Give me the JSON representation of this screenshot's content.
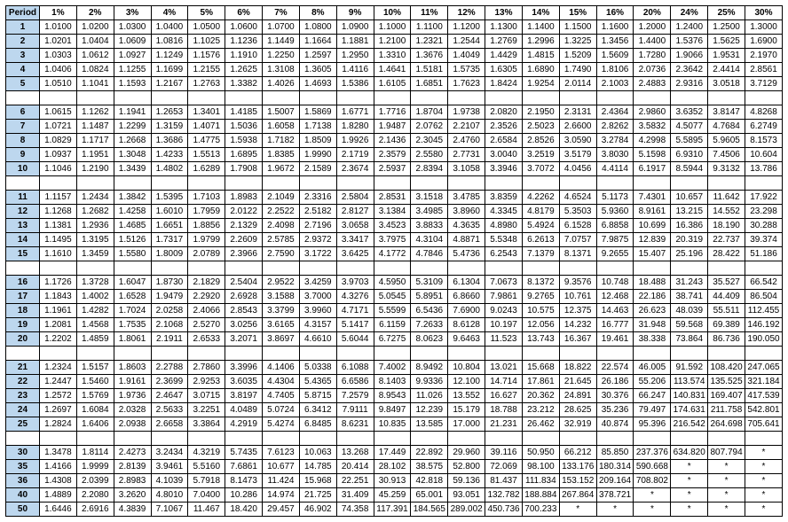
{
  "table": {
    "type": "table",
    "period_header": "Period",
    "columns": [
      "1%",
      "2%",
      "3%",
      "4%",
      "5%",
      "6%",
      "7%",
      "8%",
      "9%",
      "10%",
      "11%",
      "12%",
      "13%",
      "14%",
      "15%",
      "16%",
      "20%",
      "24%",
      "25%",
      "30%"
    ],
    "header_bg": "#bdd7ee",
    "period_cell_bg": "#bdd7ee",
    "cell_bg": "#ffffff",
    "border_color": "#000000",
    "font_size": 10,
    "groups": [
      [
        {
          "p": "1",
          "v": [
            "1.0100",
            "1.0200",
            "1.0300",
            "1.0400",
            "1.0500",
            "1.0600",
            "1.0700",
            "1.0800",
            "1.0900",
            "1.1000",
            "1.1100",
            "1.1200",
            "1.1300",
            "1.1400",
            "1.1500",
            "1.1600",
            "1.2000",
            "1.2400",
            "1.2500",
            "1.3000"
          ]
        },
        {
          "p": "2",
          "v": [
            "1.0201",
            "1.0404",
            "1.0609",
            "1.0816",
            "1.1025",
            "1.1236",
            "1.1449",
            "1.1664",
            "1.1881",
            "1.2100",
            "1.2321",
            "1.2544",
            "1.2769",
            "1.2996",
            "1.3225",
            "1.3456",
            "1.4400",
            "1.5376",
            "1.5625",
            "1.6900"
          ]
        },
        {
          "p": "3",
          "v": [
            "1.0303",
            "1.0612",
            "1.0927",
            "1.1249",
            "1.1576",
            "1.1910",
            "1.2250",
            "1.2597",
            "1.2950",
            "1.3310",
            "1.3676",
            "1.4049",
            "1.4429",
            "1.4815",
            "1.5209",
            "1.5609",
            "1.7280",
            "1.9066",
            "1.9531",
            "2.1970"
          ]
        },
        {
          "p": "4",
          "v": [
            "1.0406",
            "1.0824",
            "1.1255",
            "1.1699",
            "1.2155",
            "1.2625",
            "1.3108",
            "1.3605",
            "1.4116",
            "1.4641",
            "1.5181",
            "1.5735",
            "1.6305",
            "1.6890",
            "1.7490",
            "1.8106",
            "2.0736",
            "2.3642",
            "2.4414",
            "2.8561"
          ]
        },
        {
          "p": "5",
          "v": [
            "1.0510",
            "1.1041",
            "1.1593",
            "1.2167",
            "1.2763",
            "1.3382",
            "1.4026",
            "1.4693",
            "1.5386",
            "1.6105",
            "1.6851",
            "1.7623",
            "1.8424",
            "1.9254",
            "2.0114",
            "2.1003",
            "2.4883",
            "2.9316",
            "3.0518",
            "3.7129"
          ]
        }
      ],
      [
        {
          "p": "6",
          "v": [
            "1.0615",
            "1.1262",
            "1.1941",
            "1.2653",
            "1.3401",
            "1.4185",
            "1.5007",
            "1.5869",
            "1.6771",
            "1.7716",
            "1.8704",
            "1.9738",
            "2.0820",
            "2.1950",
            "2.3131",
            "2.4364",
            "2.9860",
            "3.6352",
            "3.8147",
            "4.8268"
          ]
        },
        {
          "p": "7",
          "v": [
            "1.0721",
            "1.1487",
            "1.2299",
            "1.3159",
            "1.4071",
            "1.5036",
            "1.6058",
            "1.7138",
            "1.8280",
            "1.9487",
            "2.0762",
            "2.2107",
            "2.3526",
            "2.5023",
            "2.6600",
            "2.8262",
            "3.5832",
            "4.5077",
            "4.7684",
            "6.2749"
          ]
        },
        {
          "p": "8",
          "v": [
            "1.0829",
            "1.1717",
            "1.2668",
            "1.3686",
            "1.4775",
            "1.5938",
            "1.7182",
            "1.8509",
            "1.9926",
            "2.1436",
            "2.3045",
            "2.4760",
            "2.6584",
            "2.8526",
            "3.0590",
            "3.2784",
            "4.2998",
            "5.5895",
            "5.9605",
            "8.1573"
          ]
        },
        {
          "p": "9",
          "v": [
            "1.0937",
            "1.1951",
            "1.3048",
            "1.4233",
            "1.5513",
            "1.6895",
            "1.8385",
            "1.9990",
            "2.1719",
            "2.3579",
            "2.5580",
            "2.7731",
            "3.0040",
            "3.2519",
            "3.5179",
            "3.8030",
            "5.1598",
            "6.9310",
            "7.4506",
            "10.604"
          ]
        },
        {
          "p": "10",
          "v": [
            "1.1046",
            "1.2190",
            "1.3439",
            "1.4802",
            "1.6289",
            "1.7908",
            "1.9672",
            "2.1589",
            "2.3674",
            "2.5937",
            "2.8394",
            "3.1058",
            "3.3946",
            "3.7072",
            "4.0456",
            "4.4114",
            "6.1917",
            "8.5944",
            "9.3132",
            "13.786"
          ]
        }
      ],
      [
        {
          "p": "11",
          "v": [
            "1.1157",
            "1.2434",
            "1.3842",
            "1.5395",
            "1.7103",
            "1.8983",
            "2.1049",
            "2.3316",
            "2.5804",
            "2.8531",
            "3.1518",
            "3.4785",
            "3.8359",
            "4.2262",
            "4.6524",
            "5.1173",
            "7.4301",
            "10.657",
            "11.642",
            "17.922"
          ]
        },
        {
          "p": "12",
          "v": [
            "1.1268",
            "1.2682",
            "1.4258",
            "1.6010",
            "1.7959",
            "2.0122",
            "2.2522",
            "2.5182",
            "2.8127",
            "3.1384",
            "3.4985",
            "3.8960",
            "4.3345",
            "4.8179",
            "5.3503",
            "5.9360",
            "8.9161",
            "13.215",
            "14.552",
            "23.298"
          ]
        },
        {
          "p": "13",
          "v": [
            "1.1381",
            "1.2936",
            "1.4685",
            "1.6651",
            "1.8856",
            "2.1329",
            "2.4098",
            "2.7196",
            "3.0658",
            "3.4523",
            "3.8833",
            "4.3635",
            "4.8980",
            "5.4924",
            "6.1528",
            "6.8858",
            "10.699",
            "16.386",
            "18.190",
            "30.288"
          ]
        },
        {
          "p": "14",
          "v": [
            "1.1495",
            "1.3195",
            "1.5126",
            "1.7317",
            "1.9799",
            "2.2609",
            "2.5785",
            "2.9372",
            "3.3417",
            "3.7975",
            "4.3104",
            "4.8871",
            "5.5348",
            "6.2613",
            "7.0757",
            "7.9875",
            "12.839",
            "20.319",
            "22.737",
            "39.374"
          ]
        },
        {
          "p": "15",
          "v": [
            "1.1610",
            "1.3459",
            "1.5580",
            "1.8009",
            "2.0789",
            "2.3966",
            "2.7590",
            "3.1722",
            "3.6425",
            "4.1772",
            "4.7846",
            "5.4736",
            "6.2543",
            "7.1379",
            "8.1371",
            "9.2655",
            "15.407",
            "25.196",
            "28.422",
            "51.186"
          ]
        }
      ],
      [
        {
          "p": "16",
          "v": [
            "1.1726",
            "1.3728",
            "1.6047",
            "1.8730",
            "2.1829",
            "2.5404",
            "2.9522",
            "3.4259",
            "3.9703",
            "4.5950",
            "5.3109",
            "6.1304",
            "7.0673",
            "8.1372",
            "9.3576",
            "10.748",
            "18.488",
            "31.243",
            "35.527",
            "66.542"
          ]
        },
        {
          "p": "17",
          "v": [
            "1.1843",
            "1.4002",
            "1.6528",
            "1.9479",
            "2.2920",
            "2.6928",
            "3.1588",
            "3.7000",
            "4.3276",
            "5.0545",
            "5.8951",
            "6.8660",
            "7.9861",
            "9.2765",
            "10.761",
            "12.468",
            "22.186",
            "38.741",
            "44.409",
            "86.504"
          ]
        },
        {
          "p": "18",
          "v": [
            "1.1961",
            "1.4282",
            "1.7024",
            "2.0258",
            "2.4066",
            "2.8543",
            "3.3799",
            "3.9960",
            "4.7171",
            "5.5599",
            "6.5436",
            "7.6900",
            "9.0243",
            "10.575",
            "12.375",
            "14.463",
            "26.623",
            "48.039",
            "55.511",
            "112.455"
          ]
        },
        {
          "p": "19",
          "v": [
            "1.2081",
            "1.4568",
            "1.7535",
            "2.1068",
            "2.5270",
            "3.0256",
            "3.6165",
            "4.3157",
            "5.1417",
            "6.1159",
            "7.2633",
            "8.6128",
            "10.197",
            "12.056",
            "14.232",
            "16.777",
            "31.948",
            "59.568",
            "69.389",
            "146.192"
          ]
        },
        {
          "p": "20",
          "v": [
            "1.2202",
            "1.4859",
            "1.8061",
            "2.1911",
            "2.6533",
            "3.2071",
            "3.8697",
            "4.6610",
            "5.6044",
            "6.7275",
            "8.0623",
            "9.6463",
            "11.523",
            "13.743",
            "16.367",
            "19.461",
            "38.338",
            "73.864",
            "86.736",
            "190.050"
          ]
        }
      ],
      [
        {
          "p": "21",
          "v": [
            "1.2324",
            "1.5157",
            "1.8603",
            "2.2788",
            "2.7860",
            "3.3996",
            "4.1406",
            "5.0338",
            "6.1088",
            "7.4002",
            "8.9492",
            "10.804",
            "13.021",
            "15.668",
            "18.822",
            "22.574",
            "46.005",
            "91.592",
            "108.420",
            "247.065"
          ]
        },
        {
          "p": "22",
          "v": [
            "1.2447",
            "1.5460",
            "1.9161",
            "2.3699",
            "2.9253",
            "3.6035",
            "4.4304",
            "5.4365",
            "6.6586",
            "8.1403",
            "9.9336",
            "12.100",
            "14.714",
            "17.861",
            "21.645",
            "26.186",
            "55.206",
            "113.574",
            "135.525",
            "321.184"
          ]
        },
        {
          "p": "23",
          "v": [
            "1.2572",
            "1.5769",
            "1.9736",
            "2.4647",
            "3.0715",
            "3.8197",
            "4.7405",
            "5.8715",
            "7.2579",
            "8.9543",
            "11.026",
            "13.552",
            "16.627",
            "20.362",
            "24.891",
            "30.376",
            "66.247",
            "140.831",
            "169.407",
            "417.539"
          ]
        },
        {
          "p": "24",
          "v": [
            "1.2697",
            "1.6084",
            "2.0328",
            "2.5633",
            "3.2251",
            "4.0489",
            "5.0724",
            "6.3412",
            "7.9111",
            "9.8497",
            "12.239",
            "15.179",
            "18.788",
            "23.212",
            "28.625",
            "35.236",
            "79.497",
            "174.631",
            "211.758",
            "542.801"
          ]
        },
        {
          "p": "25",
          "v": [
            "1.2824",
            "1.6406",
            "2.0938",
            "2.6658",
            "3.3864",
            "4.2919",
            "5.4274",
            "6.8485",
            "8.6231",
            "10.835",
            "13.585",
            "17.000",
            "21.231",
            "26.462",
            "32.919",
            "40.874",
            "95.396",
            "216.542",
            "264.698",
            "705.641"
          ]
        }
      ],
      [
        {
          "p": "30",
          "v": [
            "1.3478",
            "1.8114",
            "2.4273",
            "3.2434",
            "4.3219",
            "5.7435",
            "7.6123",
            "10.063",
            "13.268",
            "17.449",
            "22.892",
            "29.960",
            "39.116",
            "50.950",
            "66.212",
            "85.850",
            "237.376",
            "634.820",
            "807.794",
            "*"
          ]
        },
        {
          "p": "35",
          "v": [
            "1.4166",
            "1.9999",
            "2.8139",
            "3.9461",
            "5.5160",
            "7.6861",
            "10.677",
            "14.785",
            "20.414",
            "28.102",
            "38.575",
            "52.800",
            "72.069",
            "98.100",
            "133.176",
            "180.314",
            "590.668",
            "*",
            "*",
            "*"
          ]
        },
        {
          "p": "36",
          "v": [
            "1.4308",
            "2.0399",
            "2.8983",
            "4.1039",
            "5.7918",
            "8.1473",
            "11.424",
            "15.968",
            "22.251",
            "30.913",
            "42.818",
            "59.136",
            "81.437",
            "111.834",
            "153.152",
            "209.164",
            "708.802",
            "*",
            "*",
            "*"
          ]
        },
        {
          "p": "40",
          "v": [
            "1.4889",
            "2.2080",
            "3.2620",
            "4.8010",
            "7.0400",
            "10.286",
            "14.974",
            "21.725",
            "31.409",
            "45.259",
            "65.001",
            "93.051",
            "132.782",
            "188.884",
            "267.864",
            "378.721",
            "*",
            "*",
            "*",
            "*"
          ]
        },
        {
          "p": "50",
          "v": [
            "1.6446",
            "2.6916",
            "4.3839",
            "7.1067",
            "11.467",
            "18.420",
            "29.457",
            "46.902",
            "74.358",
            "117.391",
            "184.565",
            "289.002",
            "450.736",
            "700.233",
            "*",
            "*",
            "*",
            "*",
            "*",
            "*"
          ]
        }
      ]
    ]
  }
}
